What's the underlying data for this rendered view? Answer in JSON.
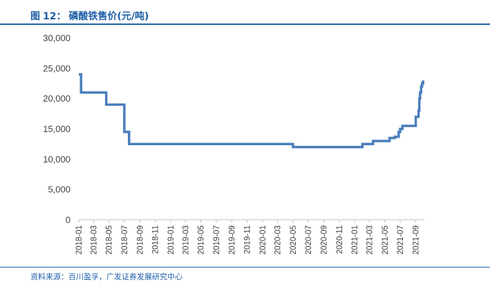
{
  "figure": {
    "label": "图",
    "number": "12",
    "separator": "：",
    "title": "磷酸铁售价(元/吨)",
    "source": "资料来源：百川盈孚，广发证券发展研究中心"
  },
  "colors": {
    "accent": "#1f5fa8",
    "line": "#4a7ebb",
    "axis": "#bfbfbf",
    "text": "#404040"
  },
  "chart_data": {
    "type": "line",
    "title": "磷酸铁售价(元/吨)",
    "xlabel": "",
    "ylabel": "",
    "ylim": [
      0,
      30000
    ],
    "yticks": [
      "0",
      "5,000",
      "10,000",
      "15,000",
      "20,000",
      "25,000",
      "30,000"
    ],
    "xticks": [
      "2018-01",
      "2018-03",
      "2018-05",
      "2018-07",
      "2018-09",
      "2018-11",
      "2019-01",
      "2019-03",
      "2019-05",
      "2019-07",
      "2019-09",
      "2019-11",
      "2020-01",
      "2020-03",
      "2020-05",
      "2020-07",
      "2020-09",
      "2020-11",
      "2021-01",
      "2021-03",
      "2021-05",
      "2021-07",
      "2021-09"
    ],
    "grid": false,
    "legend": "none",
    "step": true,
    "series": [
      {
        "x": [
          "2018-01-01",
          "2018-01-10",
          "2018-04-20",
          "2018-07-01",
          "2018-07-20",
          "2020-05-01",
          "2021-02-01",
          "2021-03-15",
          "2021-05-20",
          "2021-06-10",
          "2021-06-25",
          "2021-07-01",
          "2021-07-10",
          "2021-07-15",
          "2021-09-01",
          "2021-09-12",
          "2021-09-15",
          "2021-09-18",
          "2021-09-22",
          "2021-09-26",
          "2021-09-30"
        ],
        "values": [
          24000,
          21000,
          19000,
          14500,
          12500,
          12000,
          12500,
          13000,
          13500,
          13700,
          14500,
          15000,
          15500,
          15500,
          17000,
          18000,
          20000,
          21000,
          22000,
          22500,
          23000
        ]
      }
    ]
  }
}
